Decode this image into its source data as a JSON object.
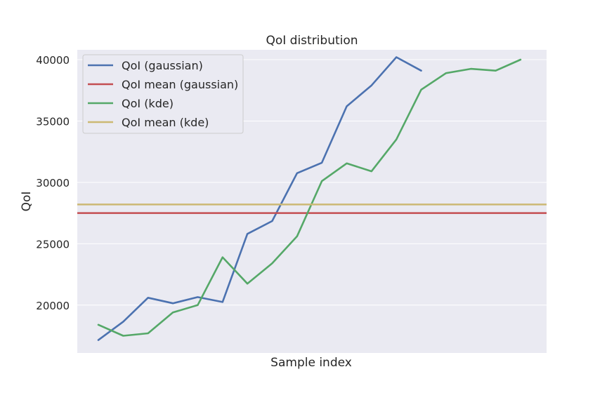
{
  "chart_data": {
    "type": "line",
    "title": "QoI distribution",
    "xlabel": "Sample index",
    "ylabel": "QoI",
    "xlim": [
      -0.85,
      18.05
    ],
    "ylim": [
      16100,
      40800
    ],
    "yticks": [
      20000,
      25000,
      30000,
      35000,
      40000
    ],
    "grid": true,
    "legend_position": "top-left",
    "series": [
      {
        "name": "QoI (gaussian)",
        "color": "#4c72b0",
        "style": "line",
        "x": [
          0,
          1,
          2,
          3,
          4,
          5,
          6,
          7,
          8,
          9,
          10,
          11,
          12,
          13
        ],
        "values": [
          17150,
          18650,
          20600,
          20150,
          20650,
          20250,
          25800,
          26850,
          30750,
          31600,
          36200,
          37900,
          40200,
          39100
        ]
      },
      {
        "name": "QoI mean (gaussian)",
        "color": "#c44e52",
        "style": "hline",
        "y": 27500
      },
      {
        "name": "QoI (kde)",
        "color": "#55a868",
        "style": "line",
        "x": [
          0,
          1,
          2,
          3,
          4,
          5,
          6,
          7,
          8,
          9,
          10,
          11,
          12,
          13,
          14,
          15,
          16,
          17
        ],
        "values": [
          18400,
          17500,
          17700,
          19400,
          20000,
          23900,
          21750,
          23400,
          25600,
          30100,
          31550,
          30900,
          33500,
          37550,
          38900,
          39250,
          39100,
          40000
        ]
      },
      {
        "name": "QoI mean (kde)",
        "color": "#ccb974",
        "style": "hline",
        "y": 28200
      }
    ]
  }
}
